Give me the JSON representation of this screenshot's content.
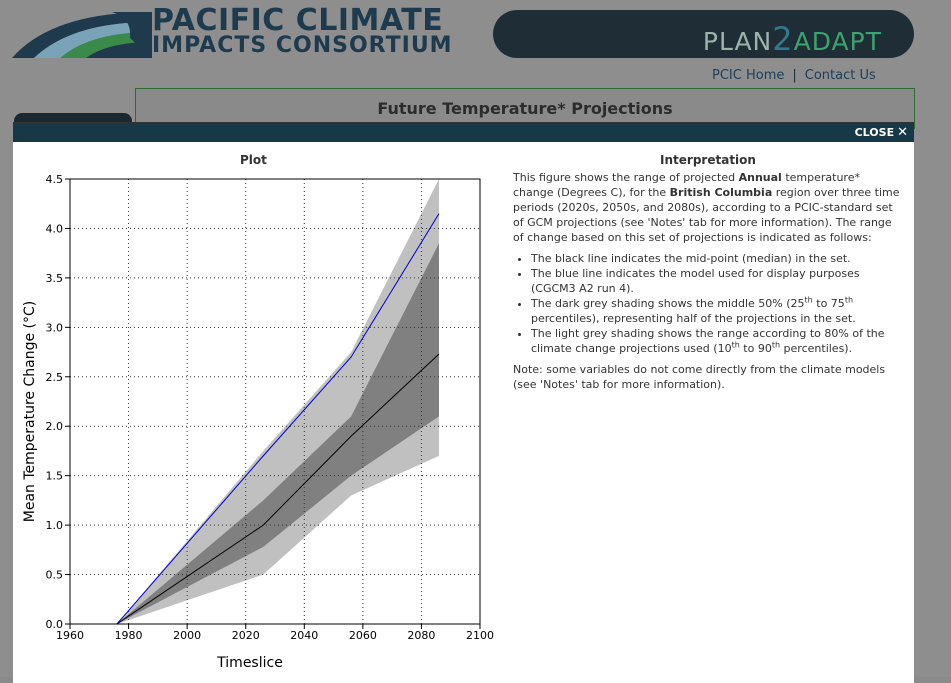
{
  "header": {
    "logo_line1": "PACIFIC CLIMATE",
    "logo_line2": "IMPACTS CONSORTIUM",
    "plan_part1": "PLAN",
    "plan_part2": "2",
    "plan_part3": "ADAPT",
    "links": [
      "PCIC Home",
      "Contact Us"
    ],
    "link_separator": "|"
  },
  "page": {
    "heading": "Future Temperature* Projections"
  },
  "modal": {
    "close_label": "CLOSE",
    "close_icon": "close-icon",
    "plot_title": "Plot",
    "interpretation": {
      "title": "Interpretation",
      "p1_a": "This figure shows the range of projected ",
      "p1_b": "Annual",
      "p1_c": " temperature* change (Degrees C), for the ",
      "p1_d": "British Columbia",
      "p1_e": " region over three time periods (2020s, 2050s, and 2080s), according to a PCIC-standard set of GCM projections (see 'Notes' tab for more information). The range of change based on this set of projections is indicated as follows:",
      "bullet1": "The black line indicates the mid-point (median) in the set.",
      "bullet2": "The blue line indicates the model used for display purposes (CGCM3 A2 run 4).",
      "bullet3_a": "The dark grey shading shows the middle 50% (25",
      "bullet3_sup1": "th",
      "bullet3_b": " to 75",
      "bullet3_sup2": "th",
      "bullet3_c": " percentiles), representing half of the projections in the set.",
      "bullet4_a": "The light grey shading shows the range according to 80% of the climate change projections used (10",
      "bullet4_sup1": "th",
      "bullet4_b": " to 90",
      "bullet4_sup2": "th",
      "bullet4_c": " percentiles).",
      "note": "Note: some variables do not come directly from the climate models (see 'Notes' tab for more information)."
    }
  },
  "colors": {
    "modal_bar": "#173847",
    "light_band": "#c0c0c0",
    "dark_band": "#808080",
    "median_line": "#000000",
    "model_line": "#0000cc"
  },
  "chart_data": {
    "type": "line",
    "title": "",
    "xlabel": "Timeslice",
    "ylabel": "Mean Temperature Change (°C)",
    "xlim": [
      1960,
      2100
    ],
    "ylim": [
      0.0,
      4.5
    ],
    "xticks": [
      1960,
      1980,
      2000,
      2020,
      2040,
      2060,
      2080,
      2100
    ],
    "yticks": [
      "0.0",
      "0.5",
      "1.0",
      "1.5",
      "2.0",
      "2.5",
      "3.0",
      "3.5",
      "4.0",
      "4.5"
    ],
    "grid": true,
    "x": [
      1976,
      2026,
      2056,
      2086
    ],
    "bands": [
      {
        "name": "10th-90th percentile",
        "lower": [
          0.0,
          0.5,
          1.3,
          1.7
        ],
        "upper": [
          0.0,
          1.75,
          2.75,
          4.5
        ]
      },
      {
        "name": "25th-75th percentile",
        "lower": [
          0.0,
          0.78,
          1.5,
          2.1
        ],
        "upper": [
          0.0,
          1.25,
          2.1,
          3.85
        ]
      }
    ],
    "series": [
      {
        "name": "median",
        "values": [
          0.0,
          1.0,
          1.9,
          2.73
        ]
      },
      {
        "name": "CGCM3 A2 run 4",
        "values": [
          0.0,
          1.7,
          2.7,
          4.15
        ]
      }
    ]
  }
}
